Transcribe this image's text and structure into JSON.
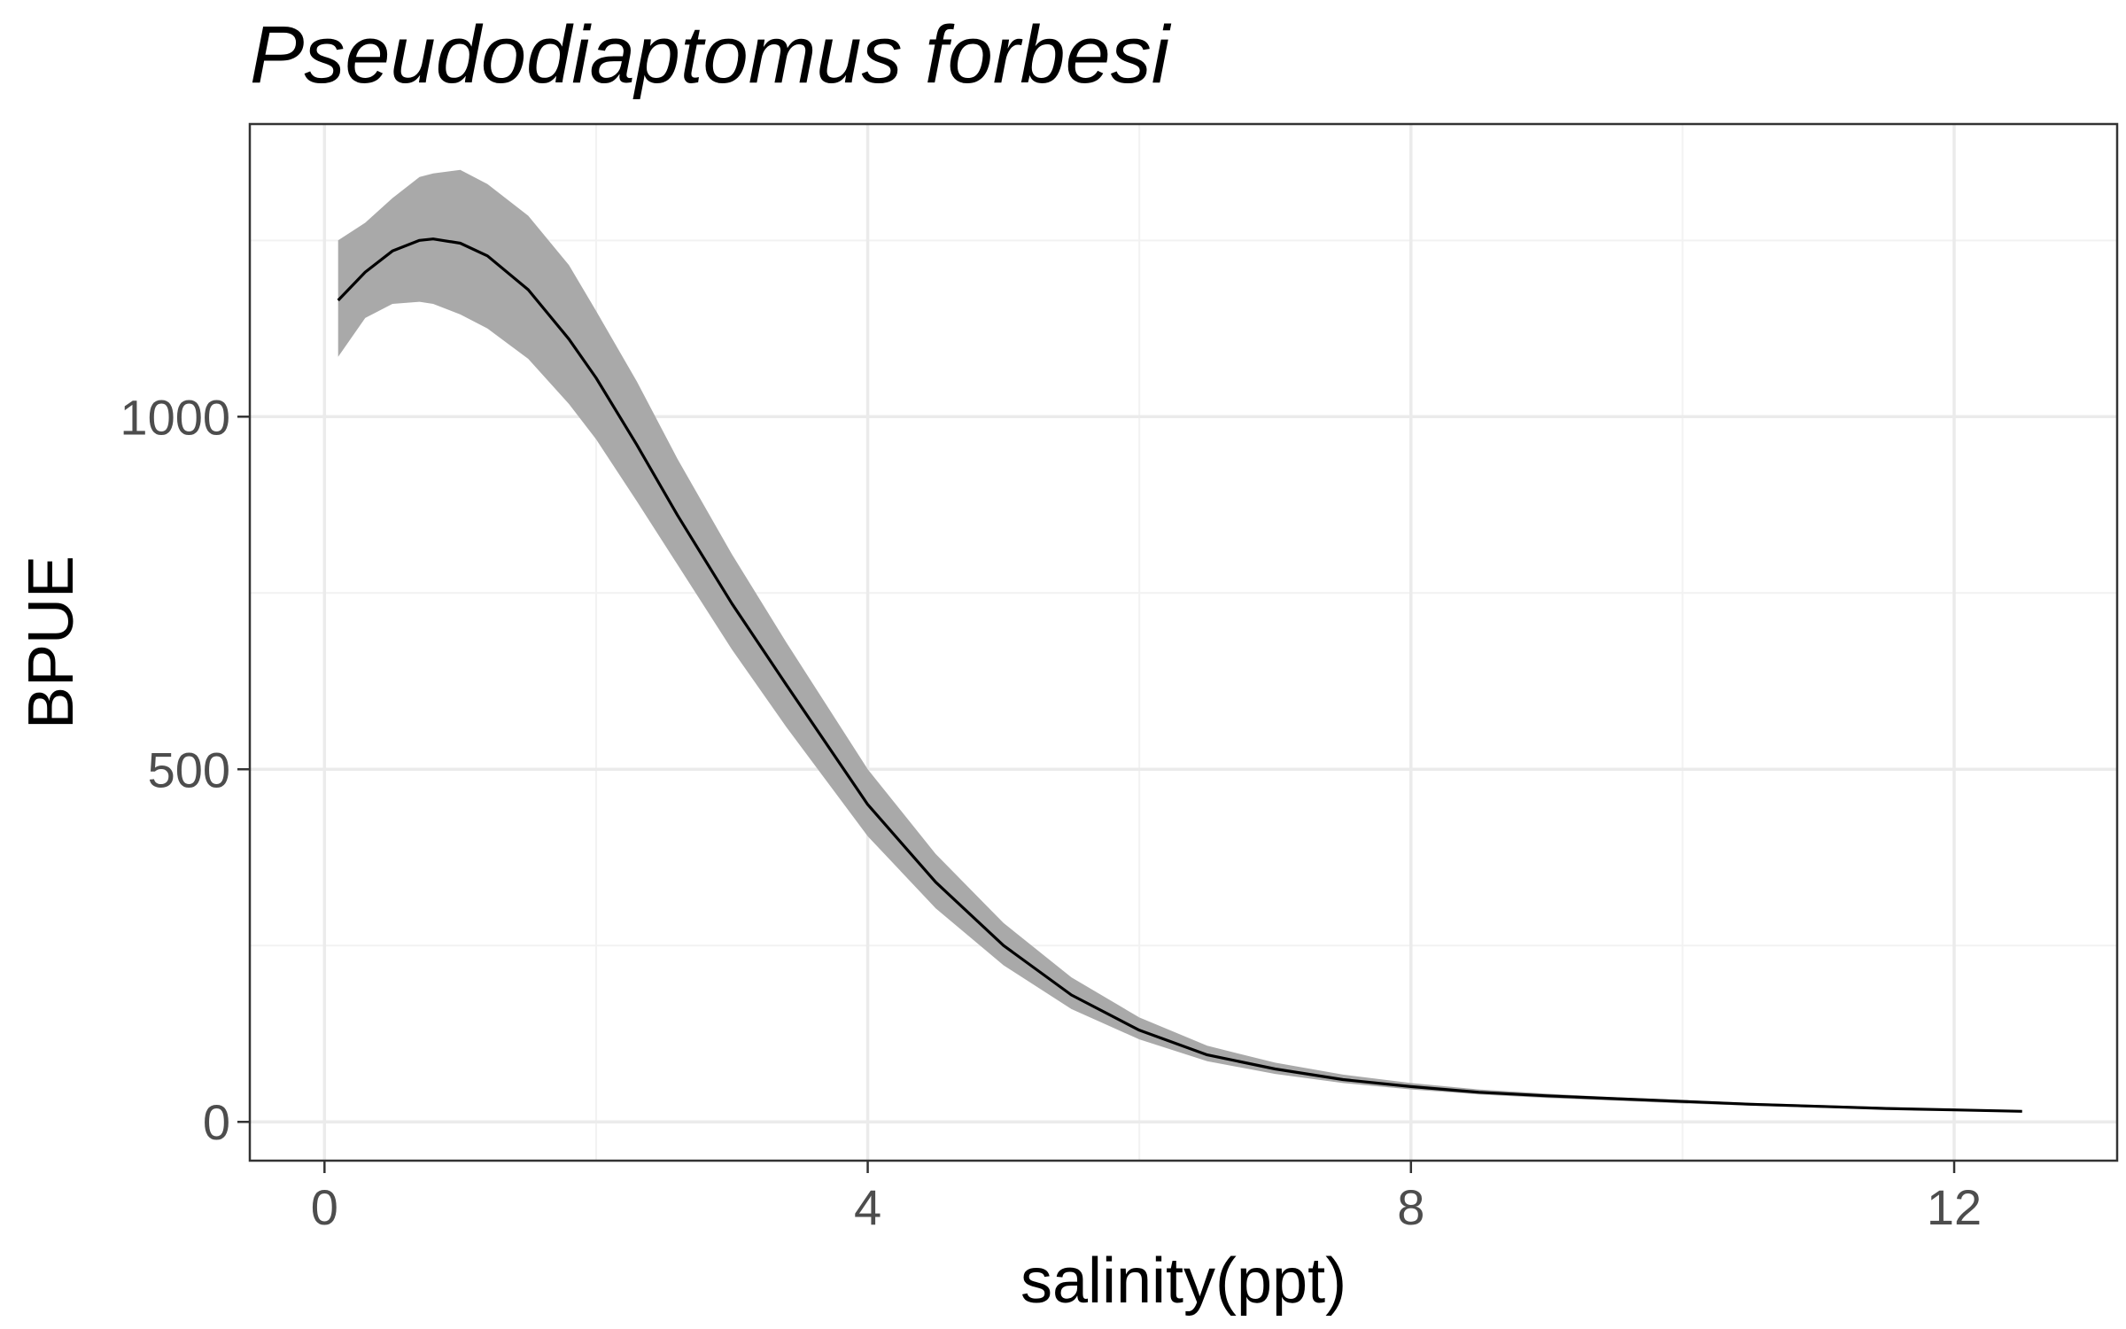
{
  "chart_data": {
    "type": "line",
    "title": "Pseudodiaptomus forbesi",
    "xlabel": "salinity(ppt)",
    "ylabel": "BPUE",
    "xlim": [
      -0.55,
      13.2
    ],
    "ylim": [
      -55,
      1415
    ],
    "x_ticks": [
      0,
      4,
      8,
      12
    ],
    "x_tick_labels": [
      "0",
      "4",
      "8",
      "12"
    ],
    "y_ticks": [
      0,
      500,
      1000
    ],
    "y_tick_labels": [
      "0",
      "500",
      "1000"
    ],
    "x_minor_ticks": [
      2,
      6,
      10
    ],
    "y_minor_ticks": [
      250,
      750,
      1250
    ],
    "grid": true,
    "line_color": "#000000",
    "ribbon_color": "#a9a9a9",
    "series": [
      {
        "x": [
          0.1,
          0.3,
          0.5,
          0.7,
          0.8,
          1.0,
          1.2,
          1.5,
          1.8,
          2.0,
          2.3,
          2.6,
          3.0,
          3.4,
          4.0,
          4.5,
          5.0,
          5.5,
          6.0,
          6.5,
          7.0,
          7.5,
          8.0,
          8.5,
          9.0,
          9.5,
          10.0,
          10.5,
          11.0,
          11.5,
          12.0,
          12.5
        ],
        "y": [
          1165,
          1205,
          1235,
          1250,
          1252,
          1246,
          1228,
          1180,
          1110,
          1055,
          960,
          860,
          735,
          620,
          450,
          340,
          250,
          180,
          130,
          95,
          75,
          60,
          50,
          42,
          37,
          33,
          29,
          25,
          22,
          19,
          17,
          15
        ],
        "lower": [
          1085,
          1140,
          1160,
          1163,
          1160,
          1145,
          1125,
          1082,
          1018,
          968,
          880,
          790,
          670,
          560,
          405,
          303,
          222,
          160,
          117,
          86,
          68,
          55,
          46,
          39,
          34,
          30,
          26,
          23,
          20,
          18,
          16,
          14
        ],
        "upper": [
          1250,
          1275,
          1310,
          1340,
          1345,
          1350,
          1330,
          1285,
          1215,
          1150,
          1050,
          940,
          805,
          680,
          500,
          380,
          282,
          205,
          148,
          108,
          84,
          67,
          55,
          46,
          40,
          35,
          31,
          27,
          24,
          21,
          18,
          16
        ]
      }
    ]
  }
}
